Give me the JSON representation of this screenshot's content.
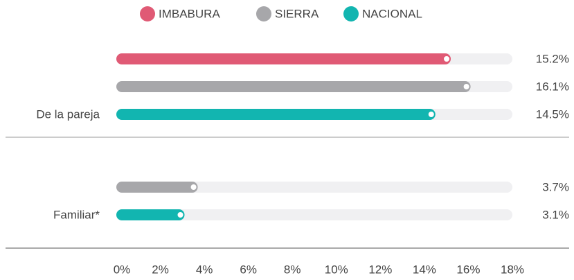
{
  "chart_data": {
    "type": "bar",
    "orientation": "horizontal",
    "categories": [
      "De la pareja",
      "Familiar*"
    ],
    "series": [
      {
        "name": "IMBABURA",
        "color": "#e05a75",
        "values": [
          15.2,
          null
        ],
        "value_labels": [
          "15.2%",
          null
        ]
      },
      {
        "name": "SIERRA",
        "color": "#a7a7aa",
        "values": [
          16.1,
          3.7
        ],
        "value_labels": [
          "16.1%",
          "3.7%"
        ]
      },
      {
        "name": "NACIONAL",
        "color": "#12b5b0",
        "values": [
          14.5,
          3.1
        ],
        "value_labels": [
          "14.5%",
          "3.1%"
        ]
      }
    ],
    "xlim": [
      0,
      18
    ],
    "xticks": [
      {
        "value": 0,
        "label": "0%"
      },
      {
        "value": 2,
        "label": "2%"
      },
      {
        "value": 4,
        "label": "4%"
      },
      {
        "value": 6,
        "label": "6%"
      },
      {
        "value": 8,
        "label": "8%"
      },
      {
        "value": 10,
        "label": "10%"
      },
      {
        "value": 12,
        "label": "12%"
      },
      {
        "value": 14,
        "label": "14%"
      },
      {
        "value": 16,
        "label": "16%"
      },
      {
        "value": 18,
        "label": "18%"
      }
    ],
    "legend": "top"
  }
}
